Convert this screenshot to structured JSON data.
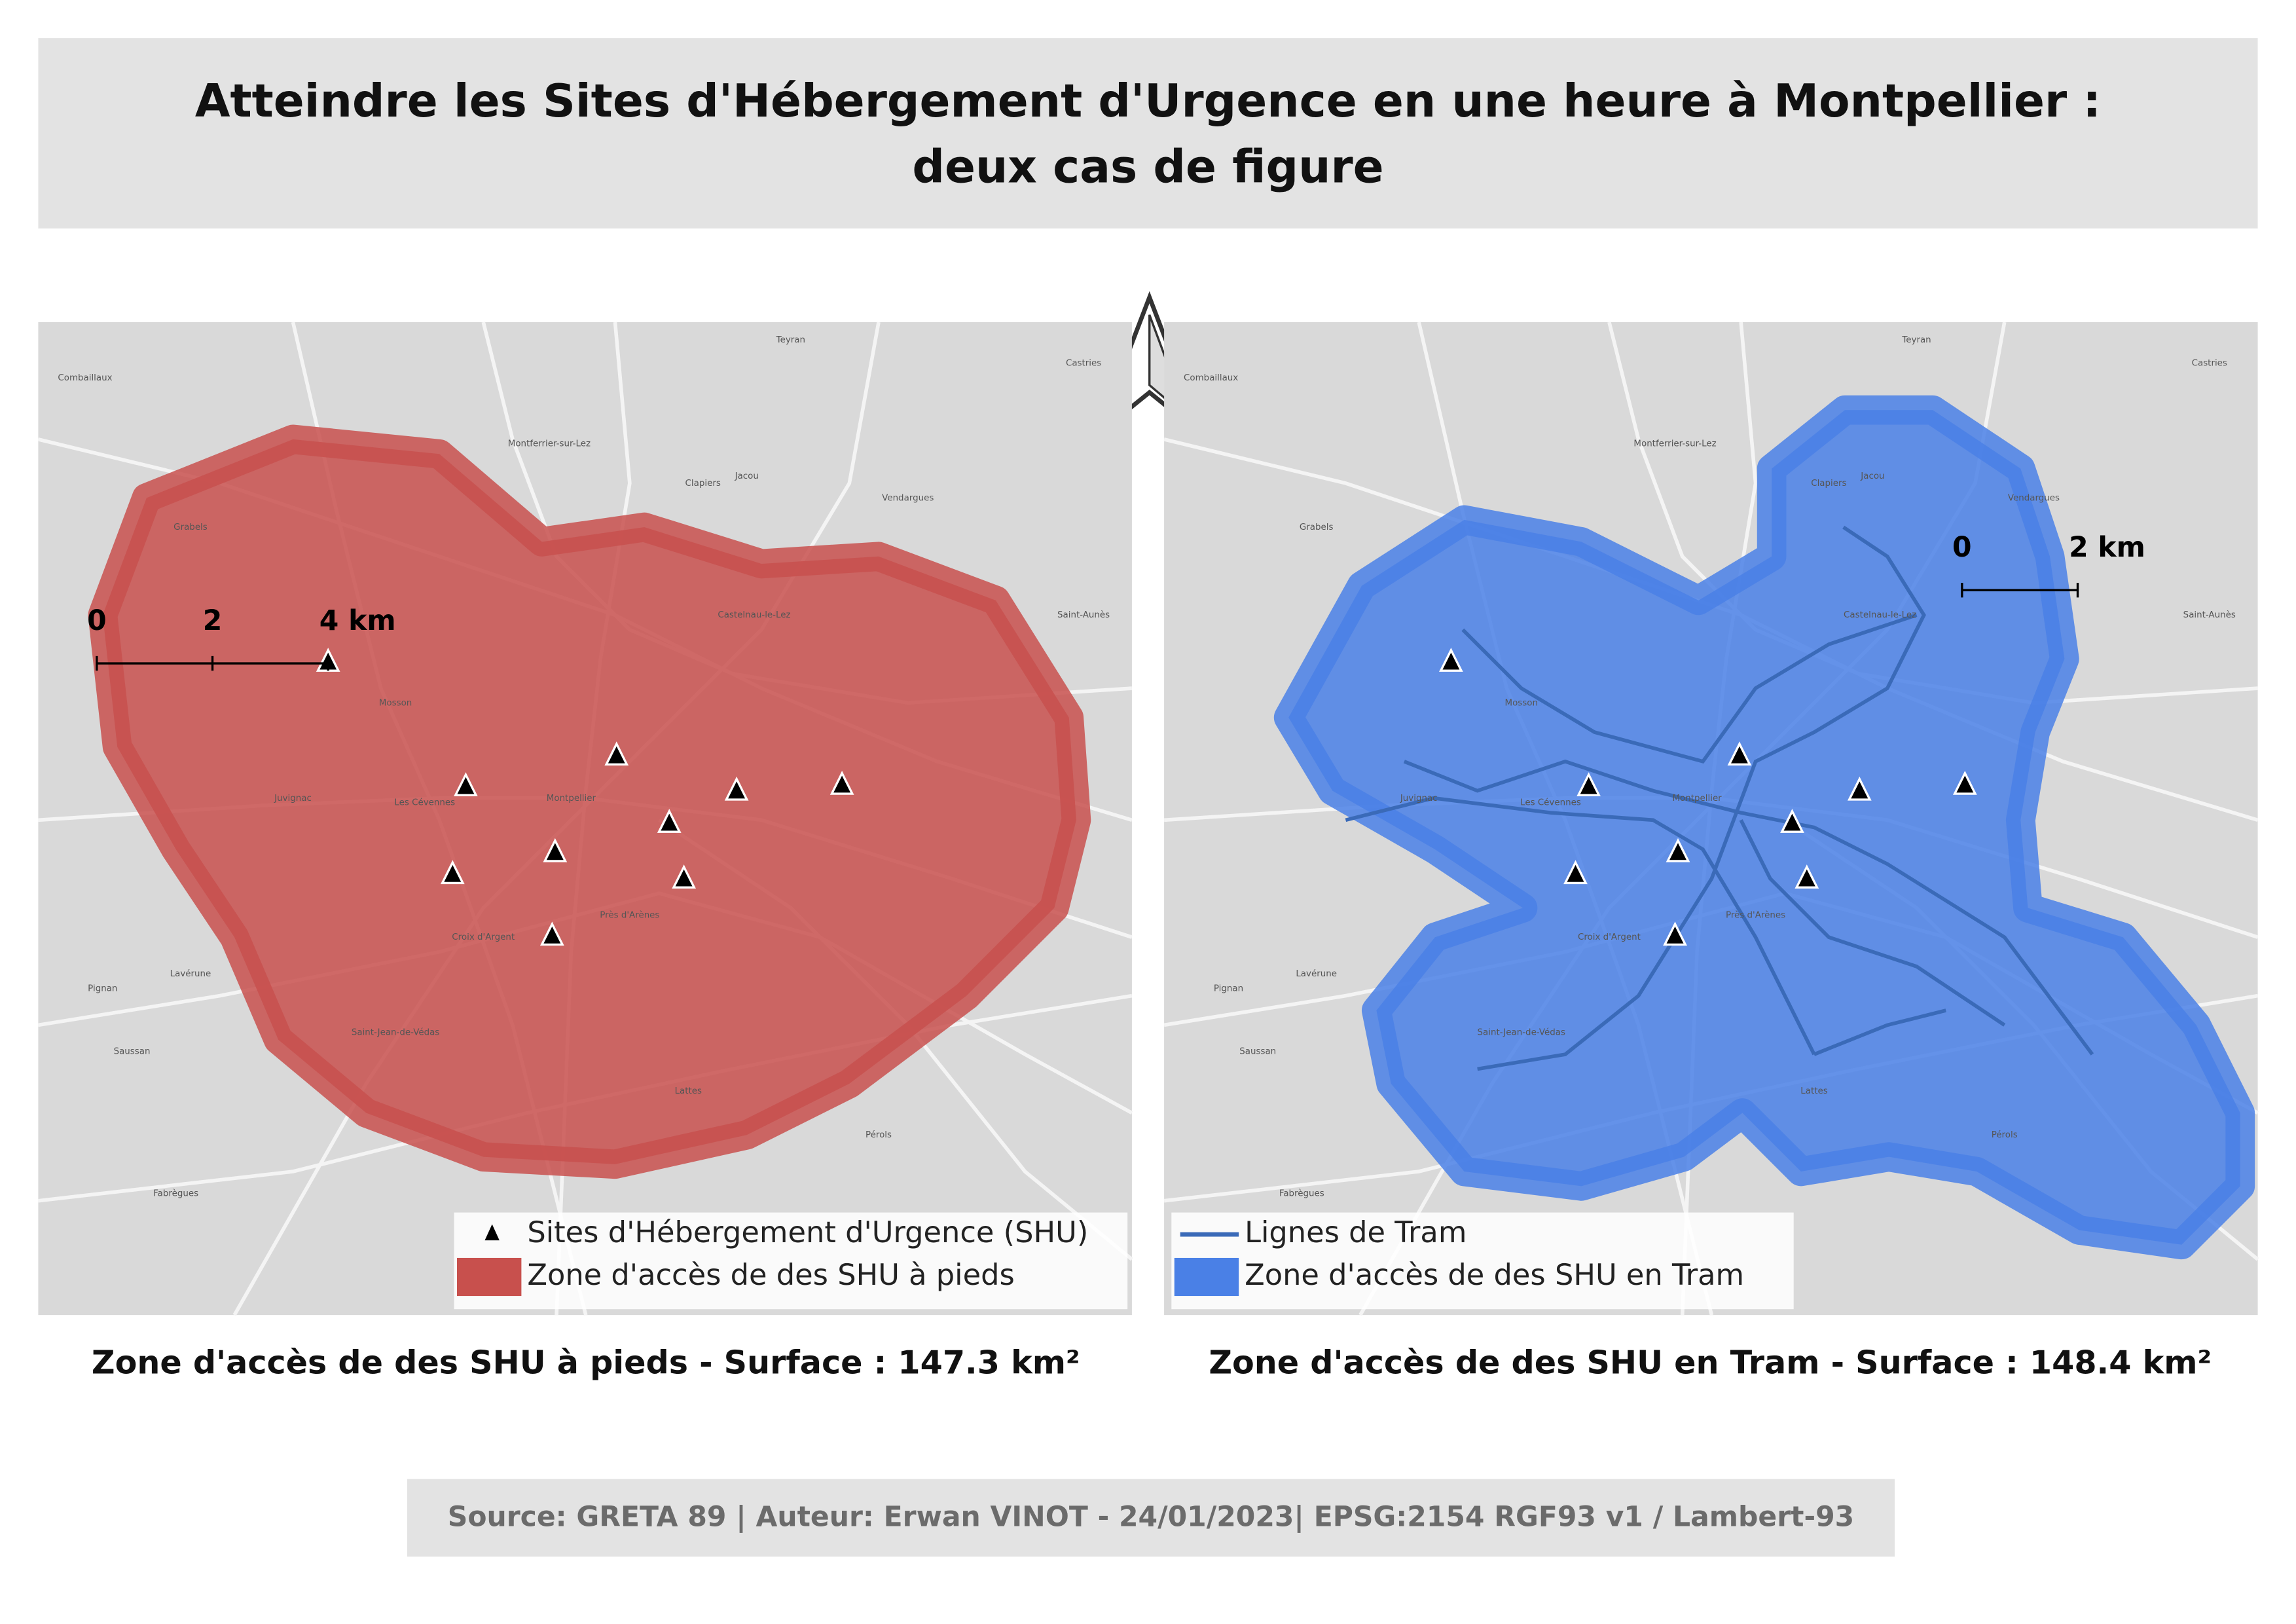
{
  "title": [
    "Atteindre les Sites d'Hébergement d'Urgence en une heure à Montpellier :",
    "deux cas de figure"
  ],
  "place_labels": [
    "Montpellier",
    "Castelnau-le-Lez",
    "Lattes",
    "Juvignac",
    "Grabels",
    "Pérols",
    "Saint-Jean-de-Védas",
    "Mosson",
    "Les Cévennes",
    "Près d'Arènes",
    "Croix d'Argent",
    "Clapiers",
    "Jacou",
    "Vendargues",
    "Saint-Aunès",
    "Lavérune",
    "Saussan",
    "Pignan",
    "Fabrègues",
    "Montferrier-sur-Lez",
    "Teyran",
    "Castries",
    "Combaillaux"
  ],
  "maps": [
    {
      "scale_bar": [
        "0",
        "2",
        "4 km"
      ],
      "legend": [
        "Sites d'Hébergement d'Urgence (SHU)",
        "Zone d'accès de des SHU à pieds"
      ],
      "caption": "Zone d'accès de des SHU à pieds - Surface : 147.3 km²",
      "zone_color": "#c8504d"
    },
    {
      "scale_bar": [
        "0",
        "2 km"
      ],
      "legend": [
        "Lignes de Tram",
        "Zone d'accès de des SHU en Tram"
      ],
      "caption": "Zone d'accès de des SHU en Tram - Surface : 148.4 km²",
      "zone_color": "#4a80e6",
      "tram_color": "#3a6ab8"
    }
  ],
  "source": "Source: GRETA 89 | Auteur: Erwan VINOT - 24/01/2023| EPSG:2154 RGF93 v1 / Lambert-93"
}
